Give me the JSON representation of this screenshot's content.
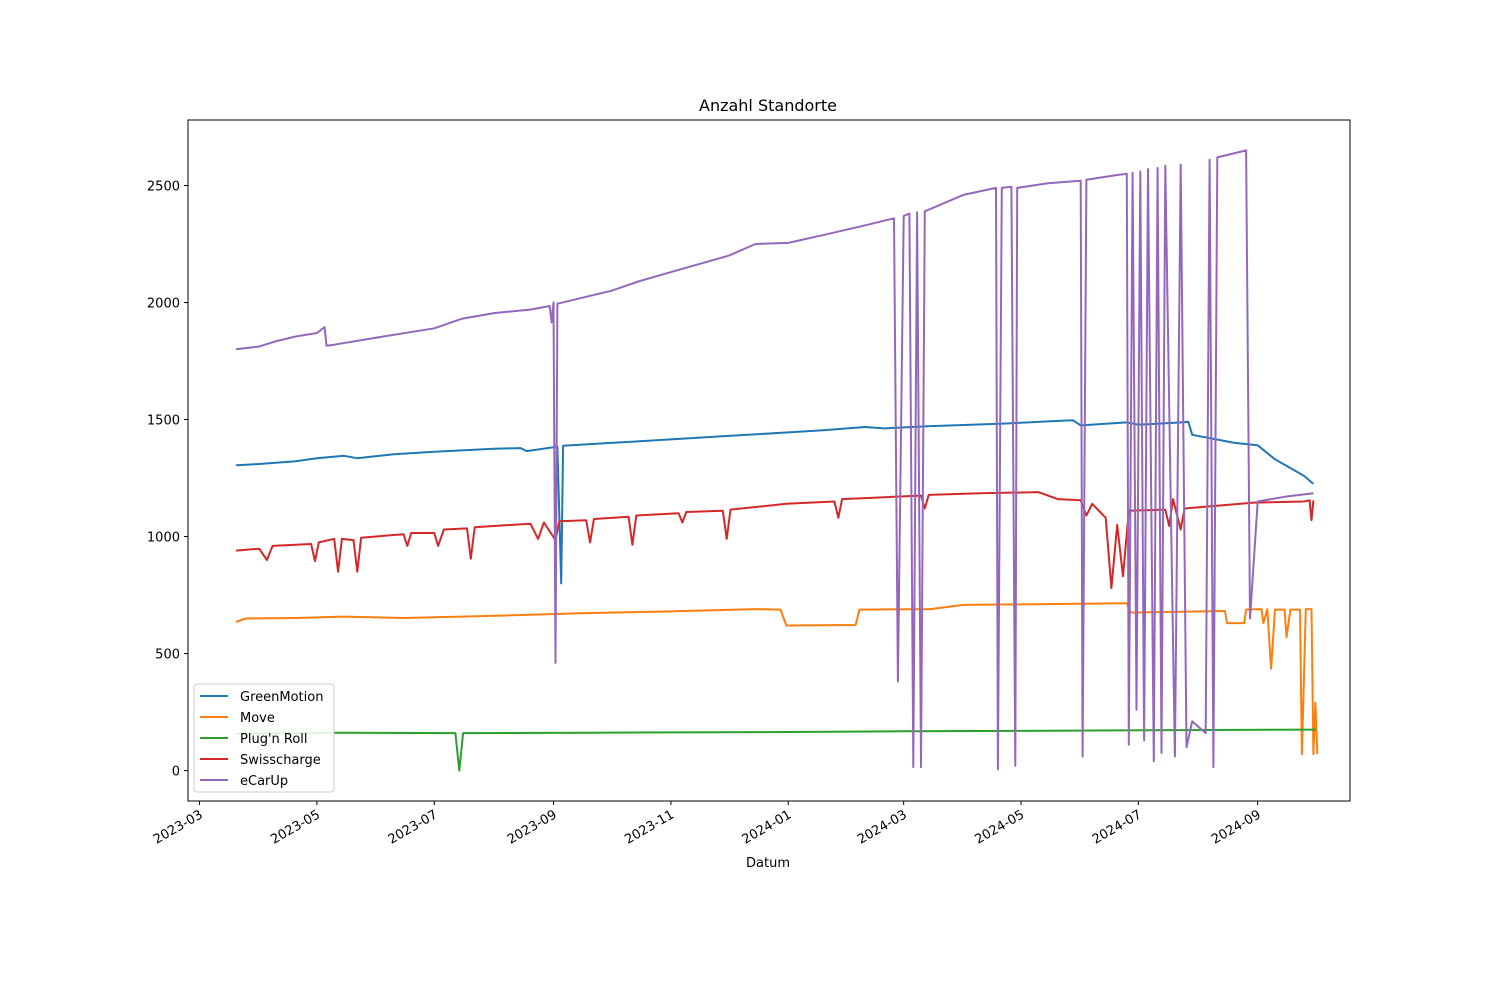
{
  "chart_data": {
    "type": "line",
    "title": "Anzahl Standorte",
    "xlabel": "Datum",
    "ylabel": "",
    "ylim": [
      -130,
      2780
    ],
    "yticks": [
      0,
      500,
      1000,
      1500,
      2000,
      2500
    ],
    "xlim": [
      "2023-02-23",
      "2024-10-19"
    ],
    "xticks": [
      {
        "date": "2023-03-01",
        "label": "2023-03"
      },
      {
        "date": "2023-05-01",
        "label": "2023-05"
      },
      {
        "date": "2023-07-01",
        "label": "2023-07"
      },
      {
        "date": "2023-09-01",
        "label": "2023-09"
      },
      {
        "date": "2023-11-01",
        "label": "2023-11"
      },
      {
        "date": "2024-01-01",
        "label": "2024-01"
      },
      {
        "date": "2024-03-01",
        "label": "2024-03"
      },
      {
        "date": "2024-05-01",
        "label": "2024-05"
      },
      {
        "date": "2024-07-01",
        "label": "2024-07"
      },
      {
        "date": "2024-09-01",
        "label": "2024-09"
      }
    ],
    "legend_position": "lower-left",
    "series": [
      {
        "name": "GreenMotion",
        "color": "#1f77b4",
        "points": [
          [
            "2023-03-20",
            1305
          ],
          [
            "2023-04-01",
            1310
          ],
          [
            "2023-04-20",
            1322
          ],
          [
            "2023-05-01",
            1335
          ],
          [
            "2023-05-15",
            1345
          ],
          [
            "2023-05-22",
            1335
          ],
          [
            "2023-06-10",
            1352
          ],
          [
            "2023-07-01",
            1362
          ],
          [
            "2023-08-01",
            1375
          ],
          [
            "2023-08-15",
            1378
          ],
          [
            "2023-08-18",
            1365
          ],
          [
            "2023-09-01",
            1382
          ],
          [
            "2023-09-03",
            1385
          ],
          [
            "2023-09-05",
            800
          ],
          [
            "2023-09-06",
            1388
          ],
          [
            "2023-10-01",
            1400
          ],
          [
            "2023-11-01",
            1415
          ],
          [
            "2023-12-01",
            1430
          ],
          [
            "2024-01-01",
            1445
          ],
          [
            "2024-01-20",
            1455
          ],
          [
            "2024-02-10",
            1468
          ],
          [
            "2024-02-20",
            1462
          ],
          [
            "2024-03-15",
            1472
          ],
          [
            "2024-04-20",
            1482
          ],
          [
            "2024-05-15",
            1492
          ],
          [
            "2024-05-28",
            1497
          ],
          [
            "2024-06-01",
            1475
          ],
          [
            "2024-06-25",
            1488
          ],
          [
            "2024-07-01",
            1478
          ],
          [
            "2024-07-20",
            1486
          ],
          [
            "2024-07-27",
            1490
          ],
          [
            "2024-07-29",
            1435
          ],
          [
            "2024-08-20",
            1400
          ],
          [
            "2024-09-01",
            1390
          ],
          [
            "2024-09-10",
            1330
          ],
          [
            "2024-09-25",
            1260
          ],
          [
            "2024-09-30",
            1225
          ]
        ]
      },
      {
        "name": "Move",
        "color": "#ff7f0e",
        "points": [
          [
            "2023-03-20",
            635
          ],
          [
            "2023-03-25",
            650
          ],
          [
            "2023-04-20",
            652
          ],
          [
            "2023-05-15",
            658
          ],
          [
            "2023-06-15",
            652
          ],
          [
            "2023-07-15",
            658
          ],
          [
            "2023-08-15",
            665
          ],
          [
            "2023-09-15",
            672
          ],
          [
            "2023-11-01",
            680
          ],
          [
            "2023-12-15",
            690
          ],
          [
            "2023-12-28",
            688
          ],
          [
            "2023-12-31",
            620
          ],
          [
            "2024-02-05",
            622
          ],
          [
            "2024-02-07",
            688
          ],
          [
            "2024-03-15",
            690
          ],
          [
            "2024-04-01",
            708
          ],
          [
            "2024-05-01",
            710
          ],
          [
            "2024-06-25",
            715
          ],
          [
            "2024-06-27",
            675
          ],
          [
            "2024-08-15",
            682
          ],
          [
            "2024-08-16",
            630
          ],
          [
            "2024-08-25",
            630
          ],
          [
            "2024-08-26",
            688
          ],
          [
            "2024-09-03",
            690
          ],
          [
            "2024-09-04",
            630
          ],
          [
            "2024-09-06",
            690
          ],
          [
            "2024-09-08",
            435
          ],
          [
            "2024-09-10",
            688
          ],
          [
            "2024-09-15",
            688
          ],
          [
            "2024-09-16",
            570
          ],
          [
            "2024-09-18",
            688
          ],
          [
            "2024-09-23",
            688
          ],
          [
            "2024-09-24",
            70
          ],
          [
            "2024-09-26",
            690
          ],
          [
            "2024-09-29",
            690
          ],
          [
            "2024-09-30",
            70
          ],
          [
            "2024-10-01",
            290
          ],
          [
            "2024-10-02",
            70
          ]
        ]
      },
      {
        "name": "Plug'n Roll",
        "color": "#2ca02c",
        "points": [
          [
            "2023-03-20",
            158
          ],
          [
            "2023-05-15",
            162
          ],
          [
            "2023-07-12",
            160
          ],
          [
            "2023-07-14",
            0
          ],
          [
            "2023-07-16",
            160
          ],
          [
            "2023-09-20",
            162
          ],
          [
            "2024-01-01",
            165
          ],
          [
            "2024-03-01",
            168
          ],
          [
            "2024-05-15",
            170
          ],
          [
            "2024-07-01",
            172
          ],
          [
            "2024-10-01",
            175
          ]
        ]
      },
      {
        "name": "Swisscharge",
        "color": "#d62728",
        "points": [
          [
            "2023-03-20",
            940
          ],
          [
            "2023-04-01",
            948
          ],
          [
            "2023-04-05",
            900
          ],
          [
            "2023-04-08",
            960
          ],
          [
            "2023-04-28",
            968
          ],
          [
            "2023-04-30",
            895
          ],
          [
            "2023-05-02",
            975
          ],
          [
            "2023-05-10",
            990
          ],
          [
            "2023-05-12",
            850
          ],
          [
            "2023-05-14",
            990
          ],
          [
            "2023-05-20",
            985
          ],
          [
            "2023-05-22",
            850
          ],
          [
            "2023-05-24",
            995
          ],
          [
            "2023-06-15",
            1010
          ],
          [
            "2023-06-17",
            960
          ],
          [
            "2023-06-19",
            1015
          ],
          [
            "2023-07-01",
            1015
          ],
          [
            "2023-07-03",
            960
          ],
          [
            "2023-07-06",
            1030
          ],
          [
            "2023-07-18",
            1035
          ],
          [
            "2023-07-20",
            905
          ],
          [
            "2023-07-22",
            1040
          ],
          [
            "2023-08-20",
            1055
          ],
          [
            "2023-08-24",
            990
          ],
          [
            "2023-08-27",
            1060
          ],
          [
            "2023-09-02",
            985
          ],
          [
            "2023-09-04",
            1065
          ],
          [
            "2023-09-18",
            1070
          ],
          [
            "2023-09-20",
            975
          ],
          [
            "2023-09-22",
            1075
          ],
          [
            "2023-10-10",
            1085
          ],
          [
            "2023-10-12",
            965
          ],
          [
            "2023-10-14",
            1090
          ],
          [
            "2023-11-05",
            1100
          ],
          [
            "2023-11-07",
            1060
          ],
          [
            "2023-11-09",
            1105
          ],
          [
            "2023-11-28",
            1110
          ],
          [
            "2023-11-30",
            990
          ],
          [
            "2023-12-02",
            1115
          ],
          [
            "2023-12-31",
            1140
          ],
          [
            "2024-01-25",
            1150
          ],
          [
            "2024-01-27",
            1080
          ],
          [
            "2024-01-29",
            1160
          ],
          [
            "2024-02-25",
            1170
          ],
          [
            "2024-03-10",
            1175
          ],
          [
            "2024-03-12",
            1120
          ],
          [
            "2024-03-14",
            1178
          ],
          [
            "2024-04-10",
            1185
          ],
          [
            "2024-05-10",
            1190
          ],
          [
            "2024-05-20",
            1160
          ],
          [
            "2024-06-01",
            1155
          ],
          [
            "2024-06-04",
            1090
          ],
          [
            "2024-06-07",
            1140
          ],
          [
            "2024-06-14",
            1080
          ],
          [
            "2024-06-17",
            780
          ],
          [
            "2024-06-20",
            1050
          ],
          [
            "2024-06-23",
            830
          ],
          [
            "2024-06-26",
            1110
          ],
          [
            "2024-07-15",
            1115
          ],
          [
            "2024-07-17",
            1045
          ],
          [
            "2024-07-19",
            1160
          ],
          [
            "2024-07-23",
            1030
          ],
          [
            "2024-07-25",
            1120
          ],
          [
            "2024-08-30",
            1145
          ],
          [
            "2024-09-25",
            1150
          ],
          [
            "2024-09-28",
            1155
          ],
          [
            "2024-09-29",
            1070
          ],
          [
            "2024-09-30",
            1155
          ]
        ]
      },
      {
        "name": "eCarUp",
        "color": "#9467bd",
        "points": [
          [
            "2023-03-20",
            1800
          ],
          [
            "2023-04-01",
            1812
          ],
          [
            "2023-04-10",
            1835
          ],
          [
            "2023-04-20",
            1855
          ],
          [
            "2023-05-01",
            1870
          ],
          [
            "2023-05-05",
            1895
          ],
          [
            "2023-05-06",
            1815
          ],
          [
            "2023-05-10",
            1820
          ],
          [
            "2023-06-01",
            1850
          ],
          [
            "2023-07-01",
            1890
          ],
          [
            "2023-07-15",
            1930
          ],
          [
            "2023-08-01",
            1955
          ],
          [
            "2023-08-20",
            1970
          ],
          [
            "2023-08-30",
            1985
          ],
          [
            "2023-08-31",
            1915
          ],
          [
            "2023-09-01",
            2000
          ],
          [
            "2023-09-02",
            460
          ],
          [
            "2023-09-03",
            1995
          ],
          [
            "2023-10-01",
            2050
          ],
          [
            "2023-10-15",
            2090
          ],
          [
            "2023-11-01",
            2130
          ],
          [
            "2023-12-01",
            2200
          ],
          [
            "2023-12-15",
            2250
          ],
          [
            "2024-01-01",
            2255
          ],
          [
            "2024-01-20",
            2290
          ],
          [
            "2024-02-10",
            2330
          ],
          [
            "2024-02-25",
            2360
          ],
          [
            "2024-02-27",
            380
          ],
          [
            "2024-03-01",
            2370
          ],
          [
            "2024-03-04",
            2380
          ],
          [
            "2024-03-06",
            15
          ],
          [
            "2024-03-08",
            2385
          ],
          [
            "2024-03-10",
            15
          ],
          [
            "2024-03-12",
            2390
          ],
          [
            "2024-04-01",
            2460
          ],
          [
            "2024-04-18",
            2490
          ],
          [
            "2024-04-19",
            5
          ],
          [
            "2024-04-21",
            2490
          ],
          [
            "2024-04-26",
            2495
          ],
          [
            "2024-04-28",
            20
          ],
          [
            "2024-04-29",
            2490
          ],
          [
            "2024-05-15",
            2510
          ],
          [
            "2024-06-01",
            2520
          ],
          [
            "2024-06-02",
            60
          ],
          [
            "2024-06-04",
            2525
          ],
          [
            "2024-06-20",
            2545
          ],
          [
            "2024-06-25",
            2550
          ],
          [
            "2024-06-26",
            110
          ],
          [
            "2024-06-28",
            2555
          ],
          [
            "2024-06-30",
            260
          ],
          [
            "2024-07-02",
            2560
          ],
          [
            "2024-07-04",
            130
          ],
          [
            "2024-07-06",
            2570
          ],
          [
            "2024-07-09",
            40
          ],
          [
            "2024-07-11",
            2575
          ],
          [
            "2024-07-13",
            75
          ],
          [
            "2024-07-15",
            2585
          ],
          [
            "2024-07-20",
            60
          ],
          [
            "2024-07-23",
            2590
          ],
          [
            "2024-07-26",
            100
          ],
          [
            "2024-07-29",
            210
          ],
          [
            "2024-08-05",
            160
          ],
          [
            "2024-08-07",
            2610
          ],
          [
            "2024-08-09",
            15
          ],
          [
            "2024-08-11",
            2620
          ],
          [
            "2024-08-26",
            2650
          ],
          [
            "2024-08-28",
            650
          ],
          [
            "2024-09-01",
            1150
          ],
          [
            "2024-09-15",
            1170
          ],
          [
            "2024-09-30",
            1185
          ]
        ]
      }
    ]
  }
}
